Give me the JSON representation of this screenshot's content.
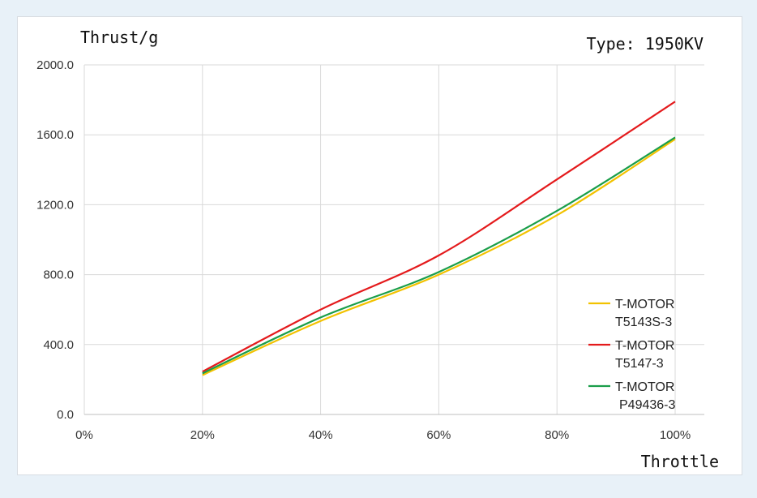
{
  "chart_data": {
    "type": "line",
    "ylabel": "Thrust/g",
    "xlabel": "Throttle",
    "annotation": "Type: 1950KV",
    "x": [
      20,
      40,
      60,
      80,
      100
    ],
    "x_ticks": [
      0,
      20,
      40,
      60,
      80,
      100
    ],
    "x_tick_labels": [
      "0%",
      "20%",
      "40%",
      "60%",
      "80%",
      "100%"
    ],
    "y_ticks": [
      0,
      400,
      800,
      1200,
      1600,
      2000
    ],
    "y_tick_labels": [
      "0.0",
      "400.0",
      "800.0",
      "1200.0",
      "1600.0",
      "2000.0"
    ],
    "xlim": [
      0,
      100
    ],
    "ylim": [
      0,
      2000
    ],
    "grid": true,
    "legend_position": "right",
    "series": [
      {
        "name_line1": "T-MOTOR",
        "name_line2": "T5143S-3",
        "color": "#f2c200",
        "values": [
          225,
          535,
          800,
          1140,
          1575
        ]
      },
      {
        "name_line1": "T-MOTOR",
        "name_line2": "T5147-3",
        "color": "#e41a1c",
        "values": [
          245,
          600,
          910,
          1345,
          1790
        ]
      },
      {
        "name_line1": "T-MOTOR",
        "name_line2": "P49436-3",
        "color": "#1a9e4a",
        "values": [
          235,
          555,
          815,
          1165,
          1585
        ]
      }
    ]
  }
}
